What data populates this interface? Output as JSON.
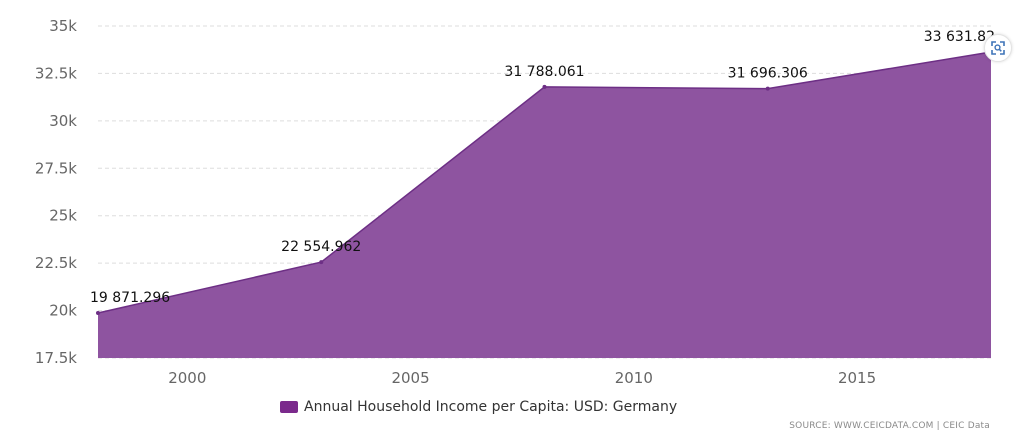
{
  "chart_data": {
    "type": "area",
    "title": "",
    "xlabel": "",
    "ylabel": "",
    "x": [
      1998,
      2003,
      2008,
      2013,
      2018
    ],
    "values": [
      19871.296,
      22554.962,
      31788.061,
      31696.306,
      33631.82
    ],
    "data_labels": [
      "19 871.296",
      "22 554.962",
      "31 788.061",
      "31 696.306",
      "33 631.82"
    ],
    "xlim": [
      1998,
      2018
    ],
    "ylim": [
      17500,
      35000
    ],
    "yticks": [
      17500,
      20000,
      22500,
      25000,
      27500,
      30000,
      32500,
      35000
    ],
    "ytick_labels": [
      "17.5k",
      "20k",
      "22.5k",
      "25k",
      "27.5k",
      "30k",
      "32.5k",
      "35k"
    ],
    "xticks": [
      2000,
      2005,
      2010,
      2015
    ],
    "xtick_labels": [
      "2000",
      "2005",
      "2010",
      "2015"
    ],
    "grid": "horizontal dashed",
    "legend_position": "bottom",
    "series": [
      {
        "name": "Annual Household Income per Capita: USD: Germany",
        "color": "#8e54a0"
      }
    ]
  },
  "legend": {
    "label": "Annual Household Income per Capita: USD: Germany",
    "swatch_color": "#7b2a8c"
  },
  "source": "SOURCE: WWW.CEICDATA.COM | CEIC Data",
  "icons": {
    "zoom": "zoom-fullscreen-icon"
  },
  "colors": {
    "area_fill": "#8e54a0",
    "area_stroke": "#6d2f85",
    "gridline": "#dddddd"
  }
}
